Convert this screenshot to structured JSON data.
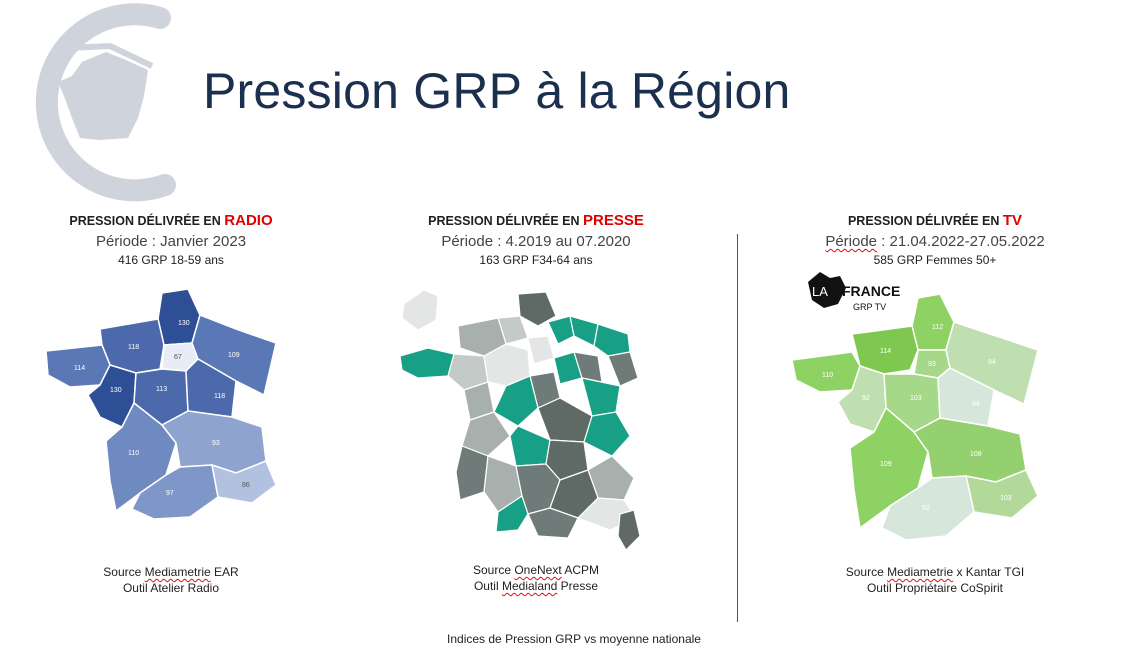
{
  "title": "Pression GRP à la Région",
  "panels": [
    {
      "head_prefix": "PRESSION DÉLIVRÉE EN ",
      "medium": "RADIO",
      "period": "Période : Janvier 2023",
      "grp": "416 GRP 18-59 ans",
      "source_prefix": "Source ",
      "source_name": "Mediametrie",
      "source_suffix": " EAR",
      "tool": "Outil Atelier Radio",
      "regions": [
        "130",
        "118",
        "67",
        "114",
        "109",
        "130",
        "113",
        "118",
        "110",
        "93",
        "97",
        "86"
      ]
    },
    {
      "head_prefix": "PRESSION DÉLIVRÉE EN ",
      "medium": "PRESSE",
      "period": "Période : 4.2019 au 07.2020",
      "grp": "163 GRP F34-64 ans",
      "source_prefix": "Source ",
      "source_name": "OneNext",
      "source_suffix": " ACPM",
      "tool_prefix": "Outil ",
      "tool_name": "Medialand",
      "tool_suffix": " Presse"
    },
    {
      "head_prefix": "PRESSION DÉLIVRÉE EN ",
      "medium": "TV",
      "period_prefix": "Période",
      "period_suffix": " : 21.04.2022-27.05.2022",
      "grp": "585 GRP Femmes 50+",
      "source_prefix": "Source ",
      "source_name": "Mediametrie",
      "source_suffix": " x Kantar TGI",
      "tool": "Outil Propriétaire CoSpirit",
      "brand_line1": "LA FRANCE",
      "brand_line2": "GRP TV",
      "regions": [
        "112",
        "114",
        "93",
        "94",
        "110",
        "92",
        "103",
        "84",
        "109",
        "108",
        "103",
        "82"
      ]
    }
  ],
  "footer": "Indices de Pression GRP vs moyenne nationale",
  "colors": {
    "title": "#1b2f4e",
    "accent": "#e00000",
    "radio_dark": "#2e4f95",
    "radio_light": "#8fa3cf",
    "presse_green": "#17a085",
    "presse_grey": "#6f7b78",
    "tv_dark": "#7ec850",
    "tv_light": "#d6e6da"
  }
}
